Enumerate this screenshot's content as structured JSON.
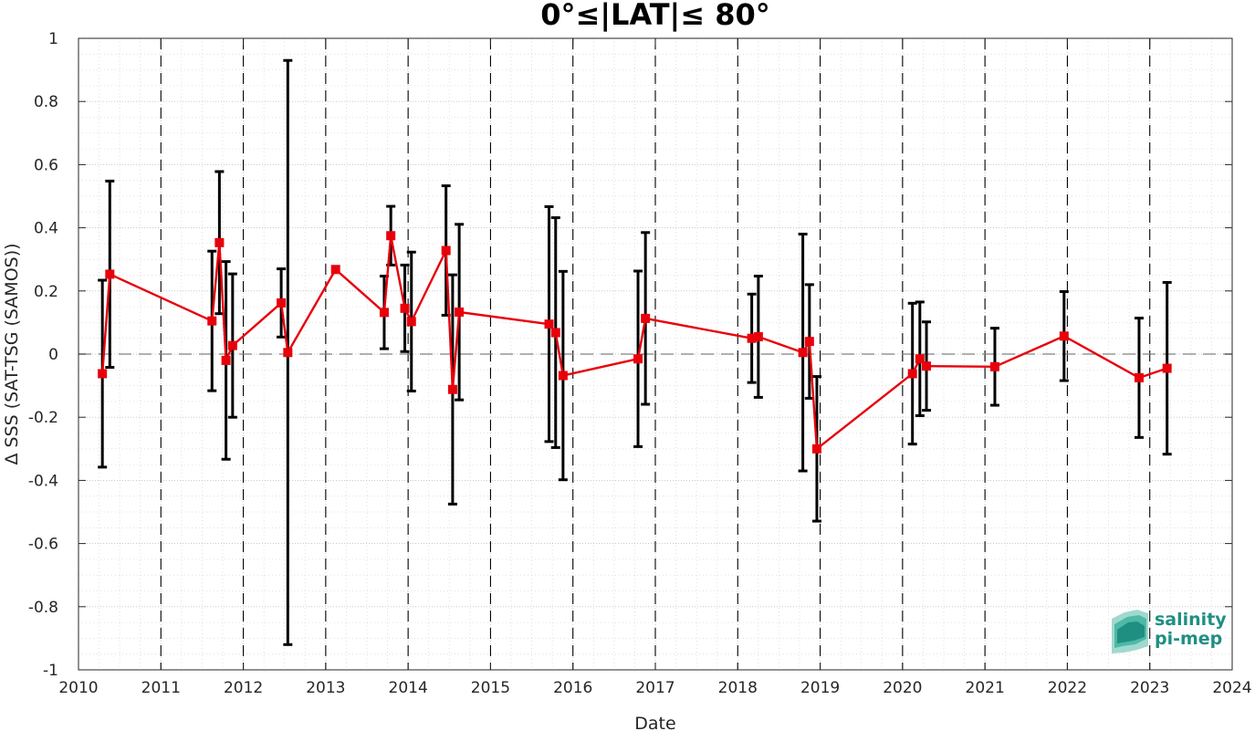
{
  "chart_data": {
    "type": "line",
    "title": "0°≤|LAT|≤ 80°",
    "xlabel": "Date",
    "ylabel": "Δ SSS (SAT-TSG (SAMOS))",
    "xlim": [
      2010,
      2024
    ],
    "ylim": [
      -1,
      1
    ],
    "x_ticks": [
      "2010",
      "2011",
      "2012",
      "2013",
      "2014",
      "2015",
      "2016",
      "2017",
      "2018",
      "2019",
      "2020",
      "2021",
      "2022",
      "2023",
      "2024"
    ],
    "y_ticks": [
      "-1",
      "-0.8",
      "-0.6",
      "-0.4",
      "-0.2",
      "0",
      "0.2",
      "0.4",
      "0.6",
      "0.8",
      "1"
    ],
    "grid": true,
    "reference_line": 0,
    "series": [
      {
        "color": "#e8000b",
        "marker": "square",
        "errorbar_color": "#000000",
        "points": [
          {
            "x": 2010.29,
            "y": -0.062,
            "err": 0.296
          },
          {
            "x": 2010.38,
            "y": 0.253,
            "err": 0.295
          },
          {
            "x": 2011.62,
            "y": 0.105,
            "err": 0.221
          },
          {
            "x": 2011.71,
            "y": 0.353,
            "err": 0.225
          },
          {
            "x": 2011.79,
            "y": -0.02,
            "err": 0.313
          },
          {
            "x": 2011.87,
            "y": 0.027,
            "err": 0.227
          },
          {
            "x": 2012.46,
            "y": 0.162,
            "err": 0.108
          },
          {
            "x": 2012.54,
            "y": 0.005,
            "err": 0.925
          },
          {
            "x": 2013.12,
            "y": 0.268,
            "err": 0.0
          },
          {
            "x": 2013.71,
            "y": 0.132,
            "err": 0.115
          },
          {
            "x": 2013.79,
            "y": 0.375,
            "err": 0.093
          },
          {
            "x": 2013.96,
            "y": 0.145,
            "err": 0.137
          },
          {
            "x": 2014.04,
            "y": 0.103,
            "err": 0.22
          },
          {
            "x": 2014.46,
            "y": 0.328,
            "err": 0.205
          },
          {
            "x": 2014.54,
            "y": -0.112,
            "err": 0.363
          },
          {
            "x": 2014.62,
            "y": 0.133,
            "err": 0.278
          },
          {
            "x": 2015.71,
            "y": 0.095,
            "err": 0.372
          },
          {
            "x": 2015.79,
            "y": 0.068,
            "err": 0.364
          },
          {
            "x": 2015.88,
            "y": -0.068,
            "err": 0.33
          },
          {
            "x": 2016.79,
            "y": -0.015,
            "err": 0.278
          },
          {
            "x": 2016.88,
            "y": 0.113,
            "err": 0.272
          },
          {
            "x": 2018.17,
            "y": 0.05,
            "err": 0.14
          },
          {
            "x": 2018.25,
            "y": 0.055,
            "err": 0.192
          },
          {
            "x": 2018.79,
            "y": 0.005,
            "err": 0.375
          },
          {
            "x": 2018.87,
            "y": 0.04,
            "err": 0.18
          },
          {
            "x": 2018.96,
            "y": -0.3,
            "err": 0.229
          },
          {
            "x": 2020.12,
            "y": -0.062,
            "err": 0.223
          },
          {
            "x": 2020.21,
            "y": -0.015,
            "err": 0.18
          },
          {
            "x": 2020.29,
            "y": -0.038,
            "err": 0.14
          },
          {
            "x": 2021.12,
            "y": -0.04,
            "err": 0.122
          },
          {
            "x": 2021.96,
            "y": 0.057,
            "err": 0.141
          },
          {
            "x": 2022.87,
            "y": -0.075,
            "err": 0.189
          },
          {
            "x": 2023.21,
            "y": -0.045,
            "err": 0.272
          }
        ]
      }
    ]
  },
  "logo": {
    "line1": "salinity",
    "line2": "pi-mep",
    "color": "#1f8f82"
  }
}
